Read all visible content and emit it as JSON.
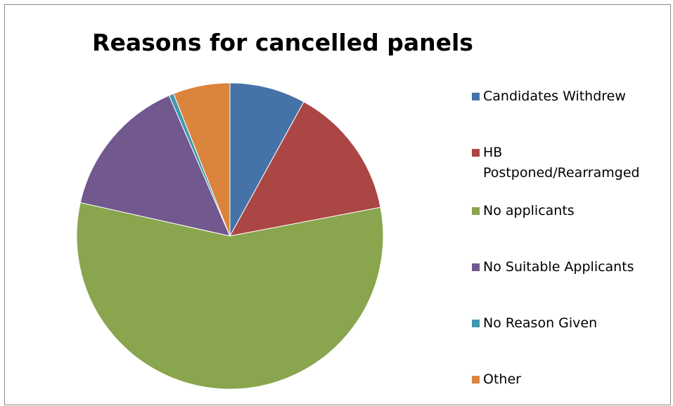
{
  "chart_data": {
    "type": "pie",
    "title": "Reasons for cancelled panels",
    "categories": [
      "Candidates Withdrew",
      "HB Postponed/Rearramged",
      "No applicants",
      "No Suitable Applicants",
      "No Reason Given",
      "Other"
    ],
    "values": [
      8.0,
      14.0,
      56.5,
      15.0,
      0.5,
      6.0
    ],
    "colors": [
      "#4572A7",
      "#AA4643",
      "#89A54E",
      "#71588F",
      "#4198AF",
      "#DB843D"
    ],
    "legend_position": "right",
    "start_angle": "12 o'clock",
    "direction": "clockwise"
  }
}
